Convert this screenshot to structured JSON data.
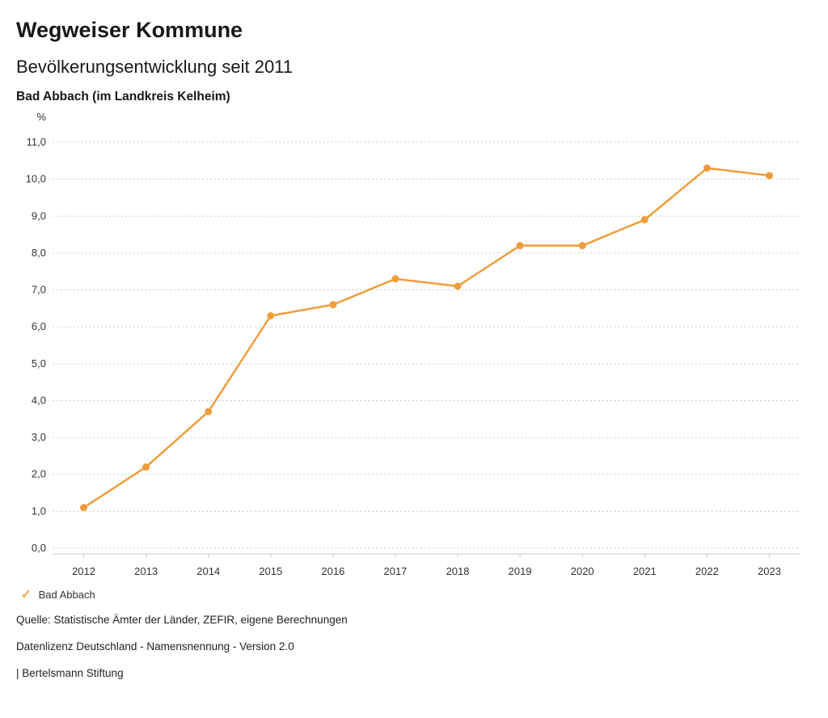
{
  "header": {
    "title": "Wegweiser Kommune",
    "subtitle": "Bevölkerungsentwicklung seit 2011",
    "location": "Bad Abbach (im Landkreis Kelheim)"
  },
  "chart_data": {
    "type": "line",
    "title": "Bevölkerungsentwicklung seit 2011",
    "subtitle": "Bad Abbach (im Landkreis Kelheim)",
    "xlabel": "",
    "ylabel": "%",
    "categories": [
      "2012",
      "2013",
      "2014",
      "2015",
      "2016",
      "2017",
      "2018",
      "2019",
      "2020",
      "2021",
      "2022",
      "2023"
    ],
    "series": [
      {
        "name": "Bad Abbach",
        "color": "#ef9d3c",
        "values": [
          1.1,
          2.2,
          3.7,
          6.3,
          6.6,
          7.3,
          7.1,
          8.2,
          8.2,
          8.9,
          10.3,
          10.1
        ]
      }
    ],
    "ylim": [
      0,
      11
    ],
    "y_tick_step": 1,
    "y_tick_labels": [
      "0,0",
      "1,0",
      "2,0",
      "3,0",
      "4,0",
      "5,0",
      "6,0",
      "7,0",
      "8,0",
      "9,0",
      "10,0",
      "11,0"
    ],
    "grid": "horizontal-dotted",
    "legend_position": "bottom-left",
    "marker": "circle"
  },
  "legend": {
    "check_icon": "✓",
    "label": "Bad Abbach"
  },
  "footer": {
    "source": "Quelle: Statistische Ämter der Länder, ZEFIR, eigene Berechnungen",
    "license": "Datenlizenz Deutschland - Namensnennung - Version 2.0",
    "attribution": "| Bertelsmann Stiftung"
  },
  "colors": {
    "accent": "#ef9d3c",
    "grid": "#cccccc",
    "axis": "#cccccc",
    "axis_text": "#333333",
    "text": "#18181a"
  }
}
